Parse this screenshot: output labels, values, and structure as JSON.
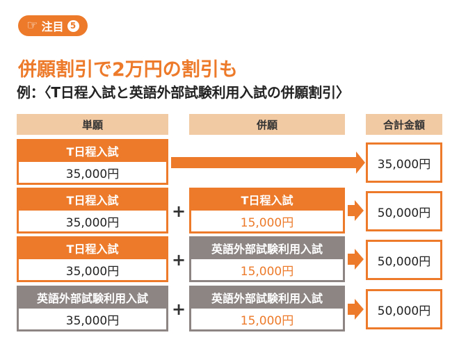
{
  "badge": {
    "label": "注目",
    "number": "5"
  },
  "headline": "併願割引で2万円の割引も",
  "subhead": "例：〈T日程入試と英語外部試験利用入試の併願割引〉",
  "columns": {
    "single": "単願",
    "combined": "併願",
    "total": "合計金額"
  },
  "rows": [
    {
      "single_name": "T日程入試",
      "single_price": "35,000円",
      "combined_name": "",
      "combined_price": "",
      "total": "35,000円"
    },
    {
      "single_name": "T日程入試",
      "single_price": "35,000円",
      "combined_name": "T日程入試",
      "combined_price": "15,000円",
      "total": "50,000円"
    },
    {
      "single_name": "T日程入試",
      "single_price": "35,000円",
      "combined_name": "英語外部試験利用入試",
      "combined_price": "15,000円",
      "total": "50,000円"
    },
    {
      "single_name": "英語外部試験利用入試",
      "single_price": "35,000円",
      "combined_name": "英語外部試験利用入試",
      "combined_price": "15,000円",
      "total": "50,000円"
    }
  ],
  "plus_sign": "+",
  "colors": {
    "accent": "#ec7a2a",
    "gray": "#8c8583",
    "header_bg": "#f1c9a3"
  }
}
